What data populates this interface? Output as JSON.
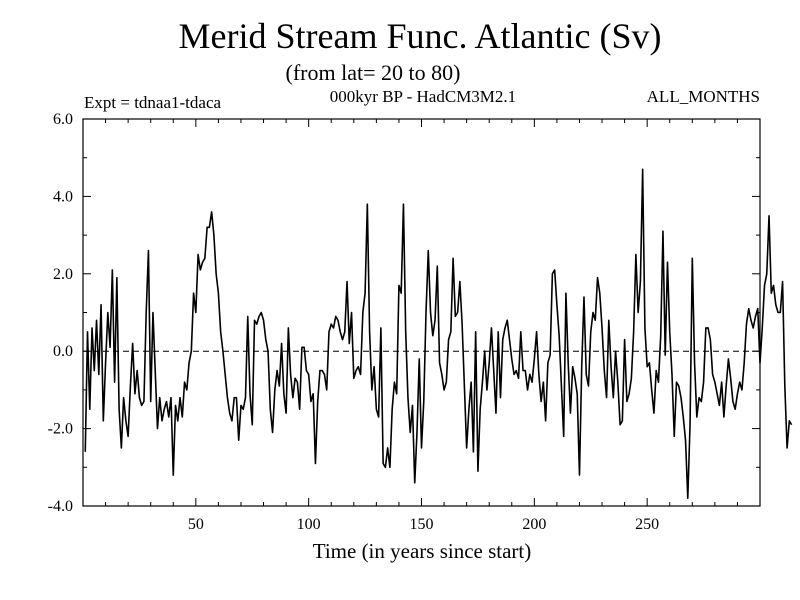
{
  "chart_data": {
    "type": "line",
    "title": "Merid Stream Func. Atlantic (Sv)",
    "subtitle": "(from lat= 20 to 80)",
    "experiment_label": "Expt = tdnaa1-tdaca",
    "model_label": "000kyr BP - HadCM3M2.1",
    "period_label": "ALL_MONTHS",
    "xlabel": "Time (in years since start)",
    "ylabel": "",
    "xlim": [
      0,
      300
    ],
    "ylim": [
      -4.0,
      6.0
    ],
    "x_ticks": [
      50,
      100,
      150,
      200,
      250
    ],
    "x_tick_labels": [
      "50",
      "100",
      "150",
      "200",
      "250"
    ],
    "y_ticks": [
      -4.0,
      -2.0,
      0.0,
      2.0,
      4.0,
      6.0
    ],
    "y_tick_labels": [
      "-4.0",
      "-2.0",
      "0.0",
      "2.0",
      "4.0",
      "6.0"
    ],
    "zero_line": true,
    "grid": false,
    "series": [
      {
        "x_start": 1,
        "x_step": 1,
        "values": [
          -2.6,
          0.5,
          -1.5,
          0.6,
          -0.5,
          0.8,
          -0.6,
          1.2,
          -1.8,
          -0.3,
          1.0,
          0.1,
          2.1,
          -0.8,
          1.9,
          -1.5,
          -2.5,
          -1.2,
          -1.8,
          -2.2,
          -0.9,
          0.2,
          -1.1,
          -0.5,
          -1.2,
          -1.4,
          -1.3,
          1.0,
          2.6,
          -1.3,
          1.0,
          -0.5,
          -2.0,
          -1.2,
          -1.8,
          -1.5,
          -1.3,
          -1.7,
          -1.2,
          -3.2,
          -1.4,
          -1.8,
          -1.2,
          -1.7,
          -0.8,
          -1.0,
          -0.3,
          0.0,
          1.5,
          1.0,
          2.5,
          2.1,
          2.3,
          2.4,
          3.2,
          3.2,
          3.6,
          3.0,
          2.0,
          1.5,
          0.5,
          0.0,
          -0.6,
          -1.2,
          -1.6,
          -1.8,
          -1.2,
          -1.2,
          -2.3,
          -1.4,
          -1.5,
          -1.2,
          0.9,
          -1.1,
          -1.9,
          0.8,
          0.7,
          0.9,
          1.0,
          0.8,
          0.3,
          0.0,
          -1.5,
          -2.1,
          -1.0,
          -0.5,
          -0.9,
          0.2,
          -1.1,
          -1.6,
          0.6,
          -0.6,
          -1.2,
          -0.7,
          -0.8,
          -1.5,
          0.1,
          0.1,
          -0.5,
          -0.6,
          -1.3,
          -1.1,
          -2.9,
          -1.3,
          -0.5,
          -0.5,
          -0.6,
          -1.0,
          0.5,
          0.7,
          0.6,
          0.9,
          0.8,
          0.5,
          0.3,
          0.5,
          1.8,
          0.2,
          1.0,
          -0.7,
          -0.5,
          -0.4,
          -0.6,
          1.0,
          1.5,
          3.8,
          0.5,
          -1.0,
          -0.4,
          -1.5,
          -1.7,
          0.6,
          -2.9,
          -3.0,
          -2.5,
          -3.0,
          -1.5,
          -0.8,
          -1.1,
          1.7,
          1.5,
          3.8,
          0.5,
          -1.2,
          -2.1,
          -1.4,
          -3.4,
          -2.1,
          -0.2,
          -2.5,
          -1.3,
          1.0,
          2.6,
          1.0,
          0.4,
          0.8,
          2.2,
          -0.3,
          -0.6,
          -1.0,
          -0.8,
          0.3,
          0.5,
          2.4,
          0.9,
          1.0,
          1.8,
          0.7,
          -0.9,
          -2.5,
          -1.5,
          -0.8,
          -2.6,
          0.5,
          -3.1,
          -1.5,
          -0.8,
          0.0,
          -1.0,
          -0.3,
          0.6,
          -0.5,
          -1.6,
          0.5,
          -1.2,
          0.3,
          0.6,
          0.8,
          0.3,
          -0.2,
          -0.6,
          -0.5,
          -0.7,
          0.5,
          -0.5,
          -0.5,
          -1.0,
          -0.6,
          -0.8,
          -0.2,
          0.5,
          -0.6,
          -1.3,
          -0.8,
          -1.8,
          -0.3,
          -0.1,
          2.0,
          2.1,
          1.2,
          0.4,
          -0.9,
          -2.2,
          1.5,
          -0.3,
          -1.6,
          -0.4,
          -0.7,
          -1.1,
          -3.2,
          -0.4,
          1.4,
          -0.6,
          -0.9,
          0.5,
          1.0,
          0.8,
          1.9,
          1.5,
          0.6,
          -0.5,
          -1.2,
          0.8,
          -0.4,
          -1.2,
          0.0,
          -0.8,
          -1.9,
          -1.8,
          0.3,
          -1.3,
          -1.1,
          -0.7,
          0.5,
          2.5,
          1.0,
          1.8,
          4.7,
          0.6,
          -0.4,
          -0.3,
          -1.0,
          -1.6,
          -0.5,
          -0.8,
          0.4,
          3.1,
          -0.1,
          2.3,
          0.5,
          -0.6,
          -2.2,
          -0.8,
          -0.9,
          -1.2,
          -1.7,
          -2.3,
          -3.8,
          -1.9,
          2.4,
          -0.3,
          -1.7,
          -1.2,
          -1.3,
          -0.8,
          0.6,
          0.6,
          0.3,
          -0.6,
          -0.8,
          -1.1,
          -1.4,
          -0.8,
          -1.7,
          -0.9,
          -0.2,
          -0.7,
          -1.3,
          -1.5,
          -1.1,
          -0.8,
          -1.0,
          -0.3,
          0.7,
          1.1,
          0.8,
          0.6,
          0.9,
          1.1,
          -0.3,
          0.6,
          1.7,
          2.0,
          3.5,
          1.5,
          1.7,
          1.2,
          1.0,
          1.0,
          1.8,
          -0.9,
          -2.5,
          -1.8,
          -1.9
        ]
      }
    ],
    "line_color": "#000000"
  }
}
